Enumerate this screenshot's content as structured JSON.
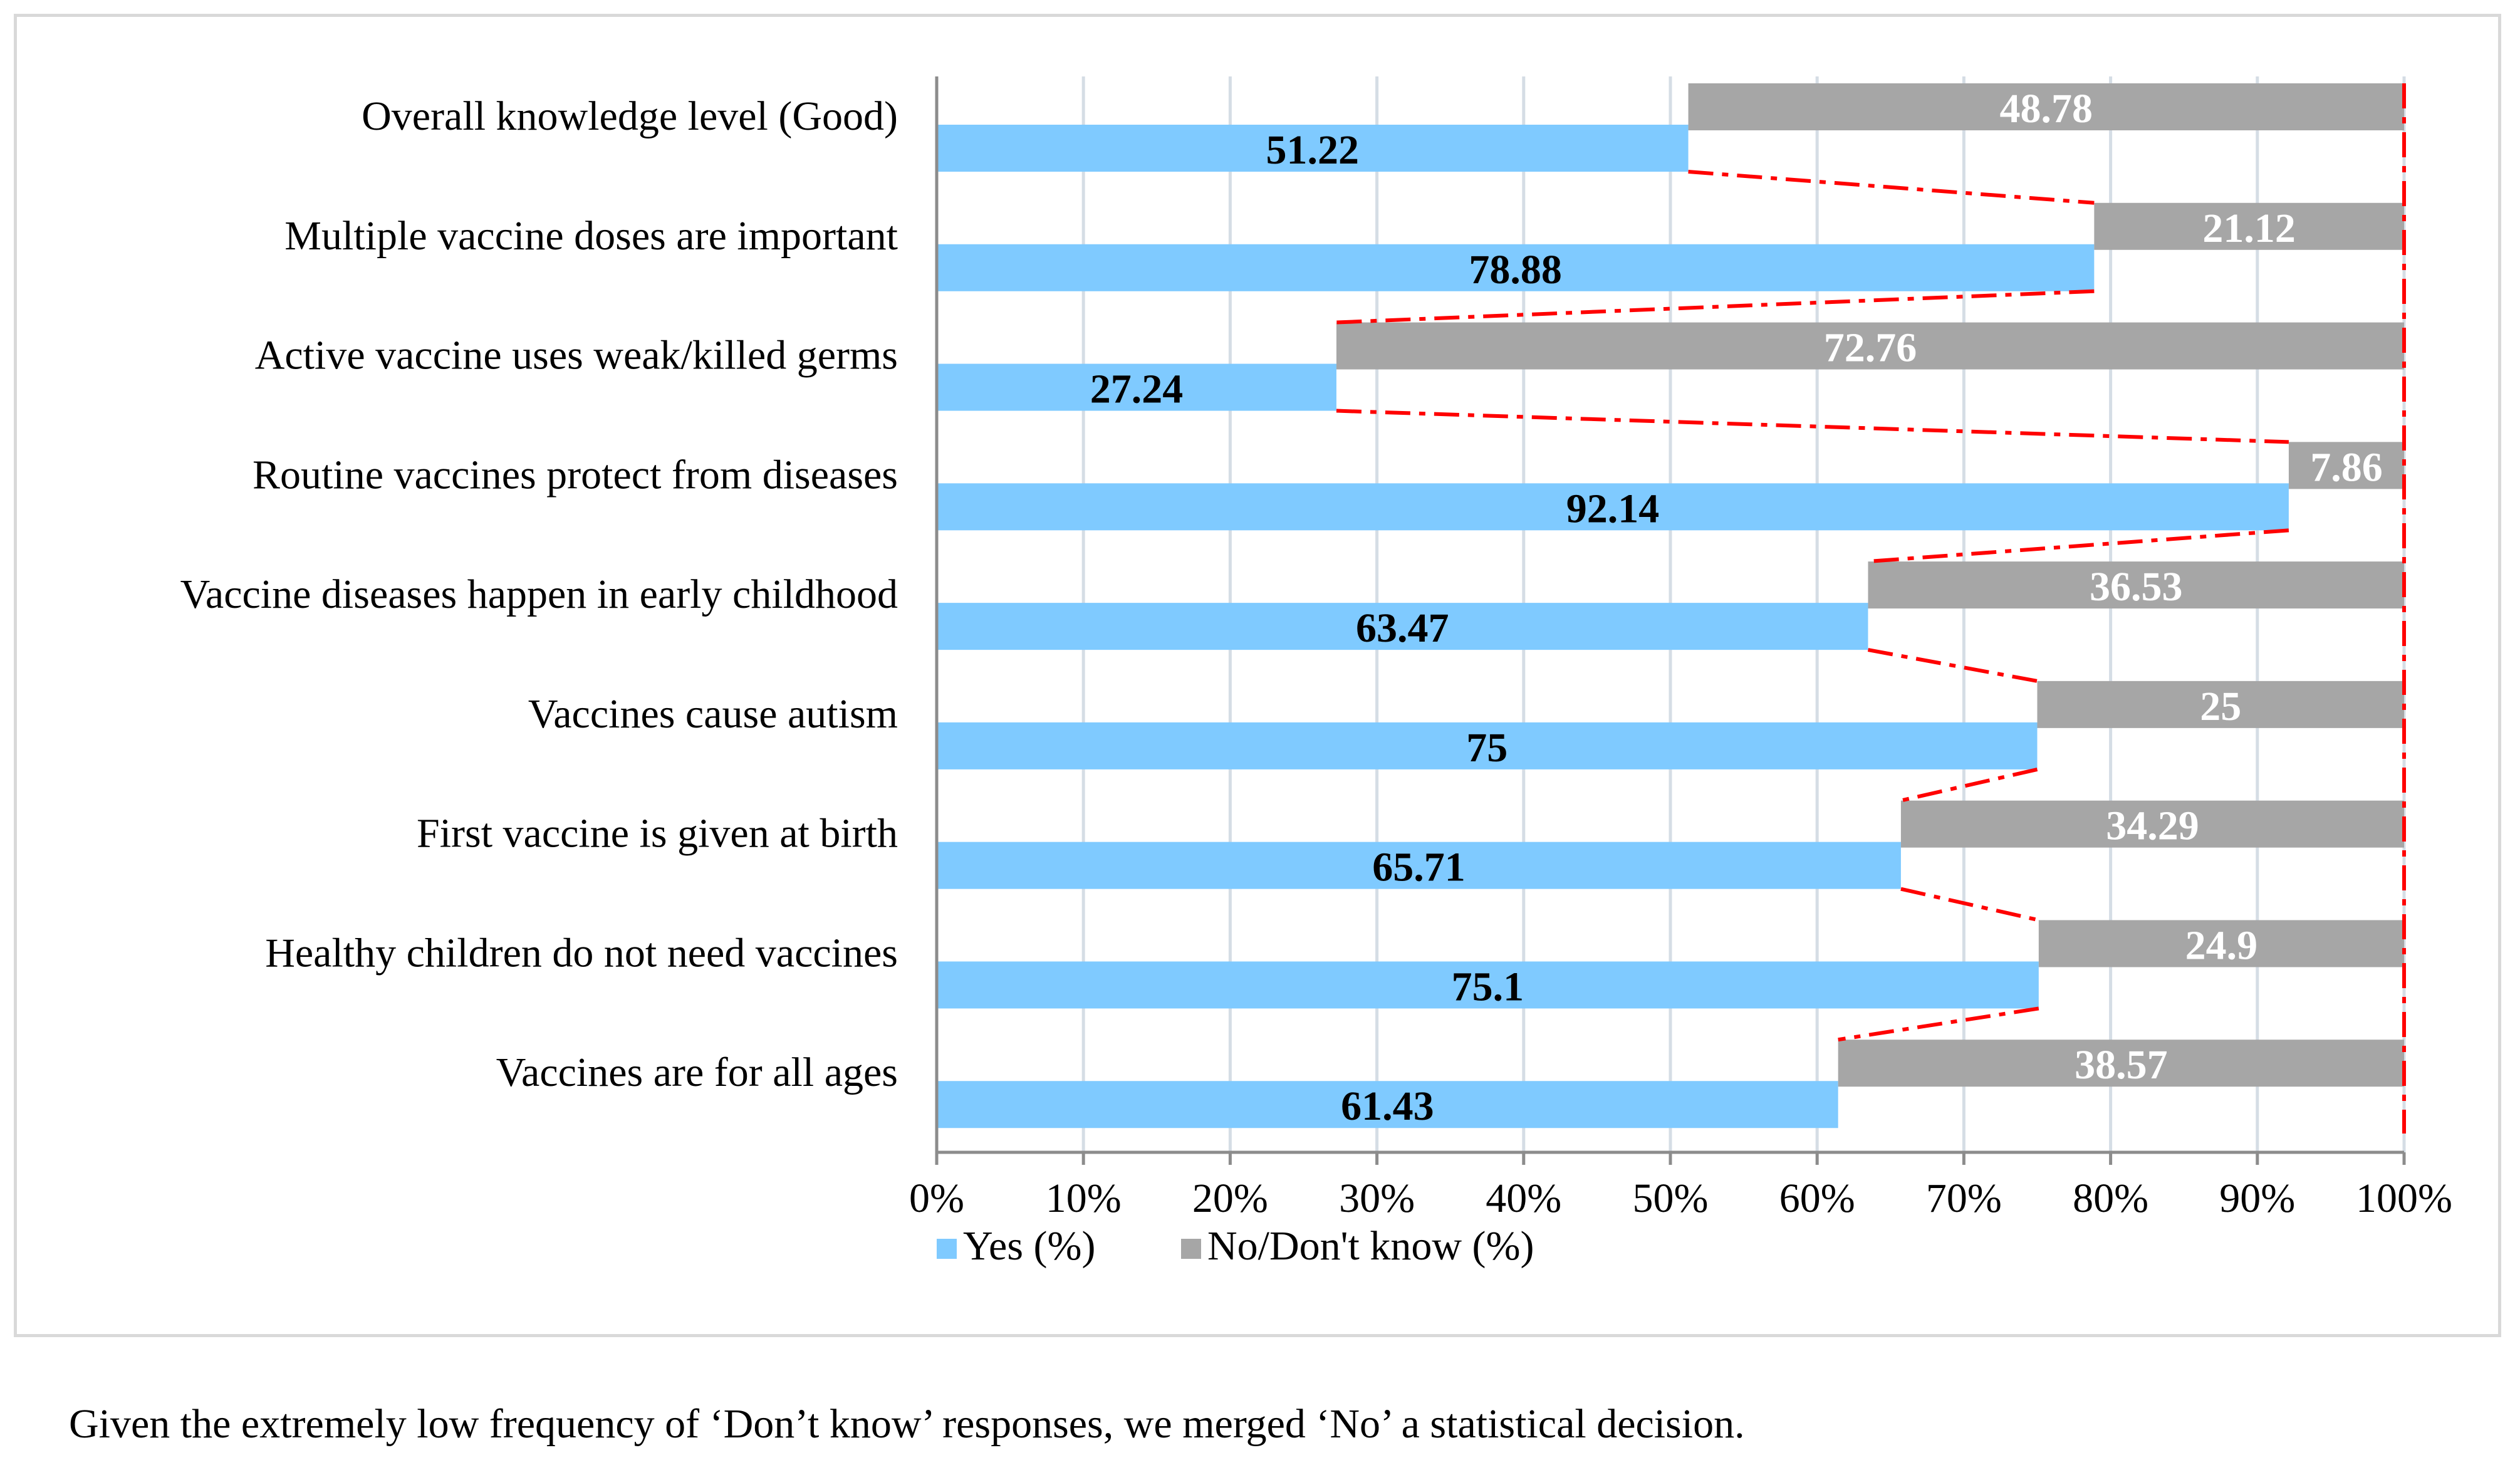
{
  "chart_data": {
    "type": "bar",
    "orientation": "horizontal",
    "stacked": true,
    "categories": [
      "Overall knowledge level (Good)",
      "Multiple vaccine doses are important",
      "Active vaccine uses weak/killed germs",
      "Routine vaccines protect from diseases",
      "Vaccine diseases happen in early childhood",
      "Vaccines cause autism",
      "First vaccine is given at birth",
      "Healthy children do not need vaccines",
      "Vaccines are for all ages"
    ],
    "series": [
      {
        "name": "Yes (%)",
        "color": "#7fcaff",
        "values": [
          51.22,
          78.88,
          27.24,
          92.14,
          63.47,
          75,
          65.71,
          75.1,
          61.43
        ],
        "labels": [
          "51.22",
          "78.88",
          "27.24",
          "92.14",
          "63.47",
          "75",
          "65.71",
          "75.1",
          "61.43"
        ]
      },
      {
        "name": "No/Don't know (%)",
        "color": "#a6a6a6",
        "values": [
          48.78,
          21.12,
          72.76,
          7.86,
          36.53,
          25,
          34.29,
          24.9,
          38.57
        ],
        "labels": [
          "48.78",
          "21.12",
          "72.76",
          "7.86",
          "36.53",
          "25",
          "34.29",
          "24.9",
          "38.57"
        ]
      }
    ],
    "x_ticks": [
      "0%",
      "10%",
      "20%",
      "30%",
      "40%",
      "50%",
      "60%",
      "70%",
      "80%",
      "90%",
      "100%"
    ],
    "xlim": [
      0,
      100
    ],
    "grid": true,
    "legend": "bottom",
    "connector_line": {
      "color": "#ff0000",
      "style": "dash-dot"
    }
  },
  "footnote": "Given the extremely low frequency of ‘Don’t know’ responses, we merged ‘No’ a statistical decision."
}
